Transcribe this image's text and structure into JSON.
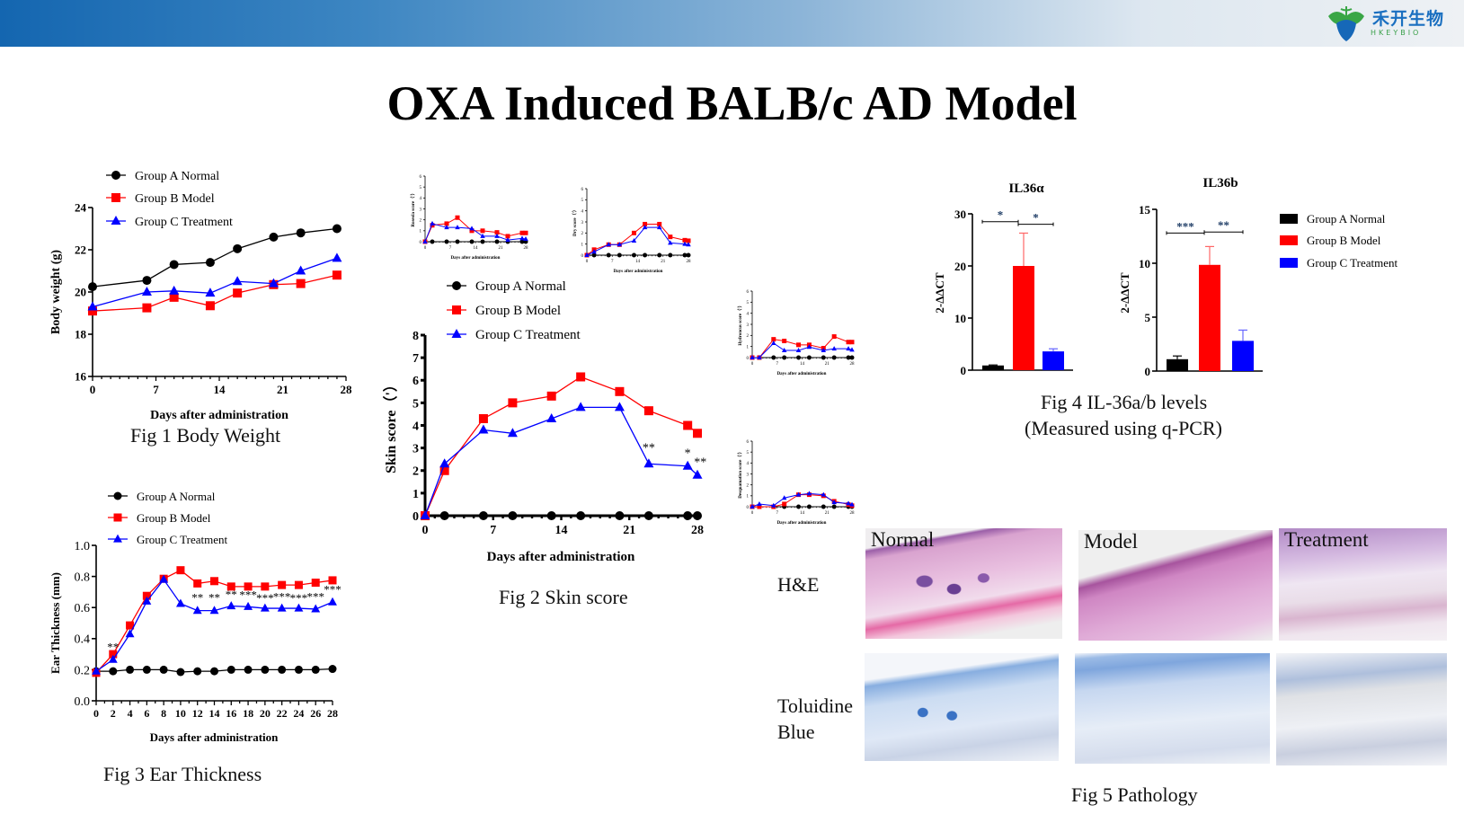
{
  "header": {
    "logo_cn": "禾开生物",
    "logo_en": "HKEYBIO"
  },
  "title": "OXA Induced BALB/c AD Model",
  "colors": {
    "group_a": "#000000",
    "group_b": "#ff0000",
    "group_c": "#0000ff"
  },
  "legend": [
    "Group A Normal",
    "Group B Model",
    "Group C Treatment"
  ],
  "captions": {
    "fig1": "Fig 1 Body Weight",
    "fig2": "Fig 2 Skin score",
    "fig3": "Fig 3 Ear Thickness",
    "fig4_line1": "Fig 4 IL-36a/b levels",
    "fig4_line2": "(Measured using q-PCR)",
    "fig5": "Fig 5 Pathology"
  },
  "pathology": {
    "row_labels": [
      "H&E",
      "Toluidine",
      "Blue"
    ],
    "col_labels": [
      "Normal",
      "Model",
      "Treatment"
    ]
  },
  "chart_data": [
    {
      "id": "fig1",
      "type": "line",
      "xlabel": "Days after administration",
      "ylabel": "Body weight (g)",
      "ylim": [
        16,
        24
      ],
      "xlim": [
        0,
        28
      ],
      "xticks": [
        0,
        7,
        14,
        21,
        28
      ],
      "yticks": [
        16,
        18,
        20,
        22,
        24
      ],
      "x": [
        0,
        6,
        9,
        13,
        16,
        20,
        23,
        27
      ],
      "series": [
        {
          "name": "Group A Normal",
          "values": [
            20.25,
            20.55,
            21.3,
            21.4,
            22.05,
            22.6,
            22.8,
            23.0
          ]
        },
        {
          "name": "Group B Model",
          "values": [
            19.1,
            19.25,
            19.75,
            19.35,
            19.95,
            20.35,
            20.4,
            20.8
          ]
        },
        {
          "name": "Group C Treatment",
          "values": [
            19.3,
            20.0,
            20.05,
            19.95,
            20.5,
            20.4,
            21.0,
            21.6
          ]
        }
      ],
      "annotations": []
    },
    {
      "id": "fig2",
      "type": "line",
      "xlabel": "Days after administration",
      "ylabel": "Skin score（'）",
      "ylim": [
        0,
        8
      ],
      "xlim": [
        0,
        28
      ],
      "xticks": [
        0,
        7,
        14,
        21,
        28
      ],
      "yticks": [
        0,
        1,
        2,
        3,
        4,
        5,
        6,
        7,
        8
      ],
      "x": [
        0,
        2,
        6,
        9,
        13,
        16,
        20,
        23,
        27,
        28
      ],
      "series": [
        {
          "name": "Group A Normal",
          "values": [
            0,
            0,
            0,
            0,
            0,
            0,
            0,
            0,
            0,
            0
          ]
        },
        {
          "name": "Group B Model",
          "values": [
            0,
            2.0,
            4.3,
            5.0,
            5.3,
            6.15,
            5.5,
            4.65,
            4.0,
            3.65
          ]
        },
        {
          "name": "Group C Treatment",
          "values": [
            0,
            2.3,
            3.8,
            3.65,
            4.3,
            4.8,
            4.8,
            2.3,
            2.2,
            1.8
          ]
        }
      ],
      "annotations": [
        {
          "x": 23,
          "y": 2.85,
          "text": "**"
        },
        {
          "x": 27,
          "y": 2.6,
          "text": "*"
        },
        {
          "x": 28.3,
          "y": 2.2,
          "text": "**"
        }
      ]
    },
    {
      "id": "fig3",
      "type": "line",
      "xlabel": "Days after administration",
      "ylabel": "Ear Thickness (mm)",
      "ylim": [
        0,
        1.0
      ],
      "xlim": [
        0,
        28
      ],
      "xticks": [
        0,
        2,
        4,
        6,
        8,
        10,
        12,
        14,
        16,
        18,
        20,
        22,
        24,
        26,
        28
      ],
      "yticks": [
        "0.0",
        "0.2",
        "0.4",
        "0.6",
        "0.8",
        "1.0"
      ],
      "x": [
        0,
        2,
        4,
        6,
        8,
        10,
        12,
        14,
        16,
        18,
        20,
        22,
        24,
        26,
        28
      ],
      "series": [
        {
          "name": "Group A Normal",
          "values": [
            0.19,
            0.19,
            0.2,
            0.2,
            0.2,
            0.185,
            0.19,
            0.19,
            0.2,
            0.2,
            0.2,
            0.2,
            0.2,
            0.2,
            0.205
          ]
        },
        {
          "name": "Group B Model",
          "values": [
            0.18,
            0.3,
            0.485,
            0.675,
            0.785,
            0.84,
            0.755,
            0.77,
            0.735,
            0.735,
            0.735,
            0.745,
            0.745,
            0.76,
            0.775
          ]
        },
        {
          "name": "Group C Treatment",
          "values": [
            0.19,
            0.265,
            0.43,
            0.64,
            0.78,
            0.625,
            0.58,
            0.58,
            0.61,
            0.605,
            0.595,
            0.595,
            0.595,
            0.59,
            0.635
          ]
        }
      ],
      "annotations": [
        {
          "x": 2,
          "y": 0.32,
          "text": "**"
        },
        {
          "x": 12,
          "y": 0.64,
          "text": "**"
        },
        {
          "x": 14,
          "y": 0.64,
          "text": "**"
        },
        {
          "x": 16,
          "y": 0.66,
          "text": "**"
        },
        {
          "x": 18,
          "y": 0.655,
          "text": "***"
        },
        {
          "x": 20,
          "y": 0.635,
          "text": "***"
        },
        {
          "x": 22,
          "y": 0.645,
          "text": "***"
        },
        {
          "x": 24,
          "y": 0.635,
          "text": "***"
        },
        {
          "x": 26,
          "y": 0.645,
          "text": "***"
        },
        {
          "x": 28,
          "y": 0.69,
          "text": "***"
        }
      ]
    },
    {
      "id": "roseola",
      "type": "line",
      "xlabel": "Days after administration",
      "ylabel": "Roseola score（'）",
      "ylim": [
        0,
        6
      ],
      "xlim": [
        0,
        28
      ],
      "xticks": [
        0,
        7,
        14,
        21,
        28
      ],
      "yticks": [
        0,
        1,
        2,
        3,
        4,
        5,
        6
      ],
      "x": [
        0,
        2,
        6,
        9,
        13,
        16,
        20,
        23,
        27,
        28
      ],
      "series": [
        {
          "name": "Group A Normal",
          "values": [
            0,
            0,
            0,
            0,
            0,
            0,
            0,
            0,
            0,
            0
          ]
        },
        {
          "name": "Group B Model",
          "values": [
            0,
            1.5,
            1.65,
            2.2,
            1.0,
            1.0,
            0.85,
            0.5,
            0.8,
            0.8
          ]
        },
        {
          "name": "Group C Treatment",
          "values": [
            0,
            1.65,
            1.3,
            1.3,
            1.2,
            0.5,
            0.5,
            0.15,
            0.3,
            0.25
          ]
        }
      ],
      "annotations": []
    },
    {
      "id": "dry",
      "type": "line",
      "xlabel": "Days after administration",
      "ylabel": "Dry score（'）",
      "ylim": [
        0,
        6
      ],
      "xlim": [
        0,
        28
      ],
      "xticks": [
        0,
        7,
        14,
        21,
        28
      ],
      "yticks": [
        0,
        1,
        2,
        3,
        4,
        5,
        6
      ],
      "x": [
        0,
        2,
        6,
        9,
        13,
        16,
        20,
        23,
        27,
        28
      ],
      "series": [
        {
          "name": "Group A Normal",
          "values": [
            0,
            0,
            0,
            0,
            0,
            0,
            0,
            0,
            0,
            0
          ]
        },
        {
          "name": "Group B Model",
          "values": [
            0,
            0.5,
            0.95,
            0.95,
            2.0,
            2.8,
            2.8,
            1.65,
            1.35,
            1.3
          ]
        },
        {
          "name": "Group C Treatment",
          "values": [
            0,
            0.3,
            0.95,
            0.95,
            1.3,
            2.5,
            2.5,
            1.1,
            1.0,
            0.95
          ]
        }
      ],
      "annotations": []
    },
    {
      "id": "hydroncus",
      "type": "line",
      "xlabel": "Days after administration",
      "ylabel": "Hydroncus score（'）",
      "ylim": [
        0,
        6
      ],
      "xlim": [
        0,
        28
      ],
      "xticks": [
        0,
        7,
        14,
        21,
        28
      ],
      "yticks": [
        0,
        1,
        2,
        3,
        4,
        5,
        6
      ],
      "x": [
        0,
        2,
        6,
        9,
        13,
        16,
        20,
        23,
        27,
        28
      ],
      "series": [
        {
          "name": "Group A Normal",
          "values": [
            0,
            0,
            0,
            0,
            0,
            0,
            0,
            0,
            0,
            0
          ]
        },
        {
          "name": "Group B Model",
          "values": [
            0,
            0,
            1.65,
            1.5,
            1.15,
            1.15,
            0.85,
            1.9,
            1.4,
            1.4
          ]
        },
        {
          "name": "Group C Treatment",
          "values": [
            0,
            0,
            1.3,
            0.65,
            0.65,
            0.95,
            0.65,
            0.8,
            0.8,
            0.7
          ]
        }
      ],
      "annotations": []
    },
    {
      "id": "desquamation",
      "type": "line",
      "xlabel": "Days after administration",
      "ylabel": "Desquamation score（'）",
      "ylim": [
        0,
        6
      ],
      "xlim": [
        0,
        28
      ],
      "xticks": [
        0,
        7,
        14,
        21,
        28
      ],
      "yticks": [
        0,
        1,
        2,
        3,
        4,
        5,
        6
      ],
      "x": [
        0,
        2,
        6,
        9,
        13,
        16,
        20,
        23,
        27,
        28
      ],
      "series": [
        {
          "name": "Group A Normal",
          "values": [
            0,
            0,
            0,
            0,
            0,
            0,
            0,
            0,
            0,
            0
          ]
        },
        {
          "name": "Group B Model",
          "values": [
            0,
            0,
            0,
            0.25,
            1.1,
            1.1,
            1.0,
            0.5,
            0.2,
            0.1
          ]
        },
        {
          "name": "Group C Treatment",
          "values": [
            0,
            0.25,
            0.1,
            0.8,
            1.1,
            1.2,
            1.1,
            0.4,
            0.3,
            0.2
          ]
        }
      ],
      "annotations": []
    },
    {
      "id": "il36a",
      "type": "bar",
      "title": "IL36α",
      "ylabel": "2-ΔΔCT",
      "ylim": [
        0,
        30
      ],
      "yticks": [
        0,
        10,
        20,
        30
      ],
      "categories": [
        "Group A Normal",
        "Group B Model",
        "Group C Treatment"
      ],
      "values": [
        0.9,
        20.0,
        3.6
      ],
      "errors": [
        0.1,
        6.3,
        0.5
      ],
      "significance": [
        {
          "from": 0,
          "to": 1,
          "y": 28.5,
          "text": "*"
        },
        {
          "from": 1,
          "to": 2,
          "y": 28.0,
          "text": "*"
        }
      ]
    },
    {
      "id": "il36b",
      "type": "bar",
      "title": "IL36b",
      "ylabel": "2-ΔΔCT",
      "ylim": [
        0,
        15
      ],
      "yticks": [
        0,
        5,
        10,
        15
      ],
      "categories": [
        "Group A Normal",
        "Group B Model",
        "Group C Treatment"
      ],
      "values": [
        1.1,
        9.85,
        2.8
      ],
      "errors": [
        0.3,
        1.7,
        1.0
      ],
      "significance": [
        {
          "from": 0,
          "to": 1,
          "y": 12.8,
          "text": "***"
        },
        {
          "from": 1,
          "to": 2,
          "y": 12.9,
          "text": "**"
        }
      ],
      "legend": "right"
    }
  ]
}
